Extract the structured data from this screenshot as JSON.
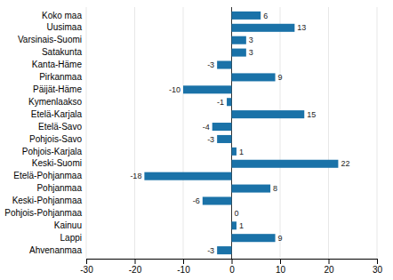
{
  "chart_data": {
    "type": "bar",
    "orientation": "horizontal",
    "categories": [
      "Koko maa",
      "Uusimaa",
      "Varsinais-Suomi",
      "Satakunta",
      "Kanta-Häme",
      "Pirkanmaa",
      "Päijät-Häme",
      "Kymenlaakso",
      "Etelä-Karjala",
      "Etelä-Savo",
      "Pohjois-Savo",
      "Pohjois-Karjala",
      "Keski-Suomi",
      "Etelä-Pohjanmaa",
      "Pohjanmaa",
      "Keski-Pohjanmaa",
      "Pohjois-Pohjanmaa",
      "Kainuu",
      "Lappi",
      "Ahvenanmaa"
    ],
    "values": [
      6,
      13,
      3,
      3,
      -3,
      9,
      -10,
      -1,
      15,
      -4,
      -3,
      1,
      22,
      -18,
      8,
      -6,
      0,
      1,
      9,
      -3
    ],
    "color": "#1a72a8",
    "xlim": [
      -30,
      30
    ],
    "xticks": [
      -30,
      -20,
      -10,
      0,
      10,
      20,
      30
    ],
    "grid": true,
    "data_labels": true
  }
}
